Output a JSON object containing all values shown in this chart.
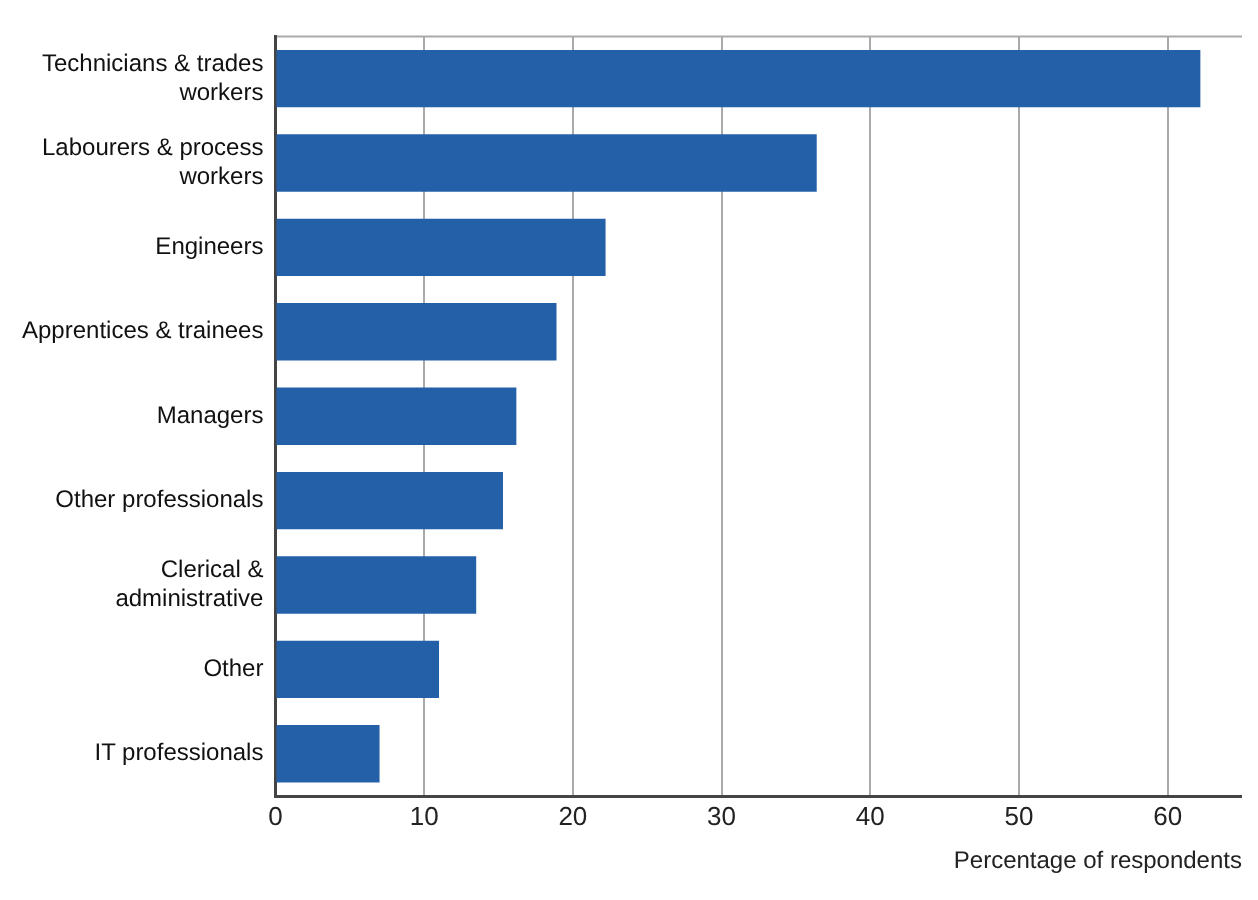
{
  "chart_data": {
    "type": "bar",
    "orientation": "horizontal",
    "xlabel": "Percentage of respondents",
    "categories": [
      "Technicians & trades workers",
      "Labourers & process workers",
      "Engineers",
      "Apprentices & trainees",
      "Managers",
      "Other professionals",
      "Clerical & administrative",
      "Other",
      "IT professionals"
    ],
    "values": [
      62.2,
      36.4,
      22.2,
      18.9,
      16.2,
      15.3,
      13.5,
      11.0,
      7.0
    ],
    "color": "#2460a7",
    "xlim": [
      0,
      65
    ],
    "xticks": [
      0,
      10,
      20,
      30,
      40,
      50,
      60
    ],
    "grid": "x",
    "legend": false
  }
}
